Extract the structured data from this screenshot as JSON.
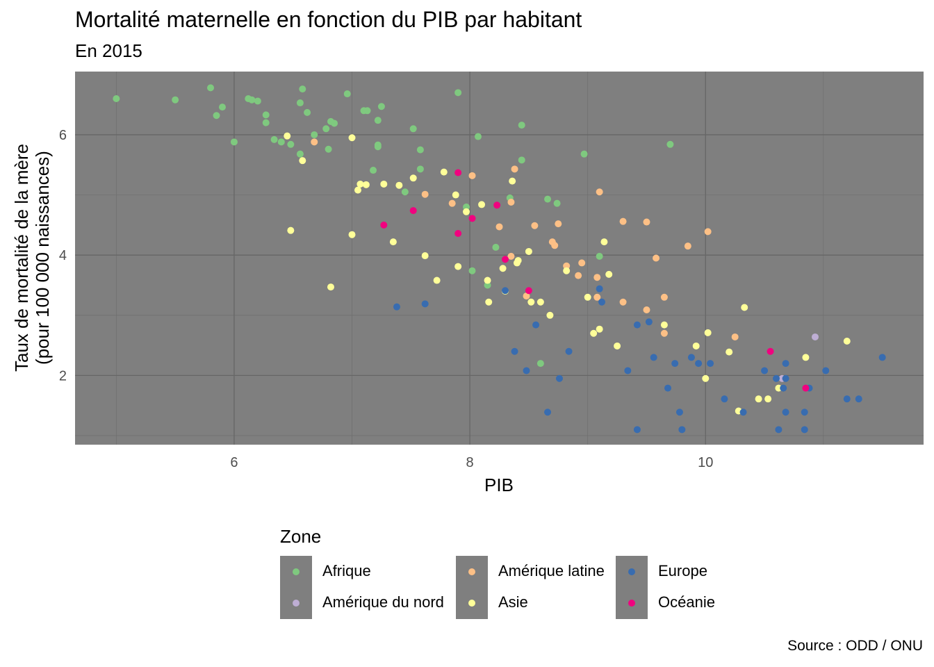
{
  "chart_data": {
    "type": "scatter",
    "title": "Mortalité maternelle en fonction du PIB par habitant",
    "subtitle": "En 2015",
    "xlabel": "PIB",
    "ylabel": "Taux de mortalité de la mère\n(pour 100 000 naissances)",
    "caption": "Source : ODD / ONU",
    "xlim": [
      4.65,
      11.85
    ],
    "ylim": [
      0.85,
      7.05
    ],
    "xticks": [
      6,
      8,
      10
    ],
    "yticks": [
      2,
      4,
      6
    ],
    "grid": true,
    "panel_background": "#7f7f7f",
    "legend_title": "Zone",
    "legend_position": "bottom",
    "series": [
      {
        "name": "Afrique",
        "color": "#7fc97f",
        "points": [
          [
            5.0,
            6.6
          ],
          [
            5.5,
            6.58
          ],
          [
            5.8,
            6.78
          ],
          [
            5.85,
            6.32
          ],
          [
            5.9,
            6.46
          ],
          [
            6.0,
            5.88
          ],
          [
            6.12,
            6.6
          ],
          [
            6.15,
            6.58
          ],
          [
            6.2,
            6.56
          ],
          [
            6.27,
            6.33
          ],
          [
            6.27,
            6.2
          ],
          [
            6.34,
            5.92
          ],
          [
            6.4,
            5.88
          ],
          [
            6.48,
            5.84
          ],
          [
            6.56,
            5.68
          ],
          [
            6.56,
            6.53
          ],
          [
            6.58,
            6.76
          ],
          [
            6.62,
            6.37
          ],
          [
            6.68,
            6.0
          ],
          [
            6.78,
            6.1
          ],
          [
            6.8,
            5.76
          ],
          [
            6.82,
            6.22
          ],
          [
            6.85,
            6.19
          ],
          [
            6.96,
            6.68
          ],
          [
            7.1,
            6.4
          ],
          [
            7.13,
            6.4
          ],
          [
            7.18,
            5.41
          ],
          [
            7.22,
            5.8
          ],
          [
            7.22,
            5.83
          ],
          [
            7.22,
            6.24
          ],
          [
            7.25,
            6.47
          ],
          [
            7.45,
            5.05
          ],
          [
            7.52,
            6.1
          ],
          [
            7.58,
            5.43
          ],
          [
            7.58,
            5.75
          ],
          [
            7.9,
            6.7
          ],
          [
            7.97,
            4.8
          ],
          [
            8.02,
            3.74
          ],
          [
            8.07,
            5.97
          ],
          [
            8.15,
            3.5
          ],
          [
            8.22,
            4.13
          ],
          [
            8.34,
            4.95
          ],
          [
            8.44,
            6.16
          ],
          [
            8.44,
            5.58
          ],
          [
            8.6,
            2.2
          ],
          [
            8.66,
            4.93
          ],
          [
            8.74,
            4.86
          ],
          [
            8.97,
            5.68
          ],
          [
            9.1,
            3.98
          ],
          [
            9.7,
            5.84
          ]
        ]
      },
      {
        "name": "Amérique du nord",
        "color": "#beaed4",
        "points": [
          [
            10.65,
            1.95
          ],
          [
            10.93,
            2.64
          ]
        ]
      },
      {
        "name": "Amérique latine",
        "color": "#fdc086",
        "points": [
          [
            6.68,
            5.88
          ],
          [
            7.62,
            5.01
          ],
          [
            7.85,
            4.86
          ],
          [
            8.02,
            5.32
          ],
          [
            8.25,
            4.47
          ],
          [
            8.35,
            3.98
          ],
          [
            8.35,
            4.88
          ],
          [
            8.38,
            5.43
          ],
          [
            8.48,
            3.32
          ],
          [
            8.55,
            4.49
          ],
          [
            8.7,
            4.22
          ],
          [
            8.72,
            4.16
          ],
          [
            8.75,
            4.52
          ],
          [
            8.82,
            3.82
          ],
          [
            8.92,
            3.66
          ],
          [
            8.95,
            3.87
          ],
          [
            9.08,
            3.63
          ],
          [
            9.08,
            3.3
          ],
          [
            9.1,
            5.05
          ],
          [
            9.3,
            4.56
          ],
          [
            9.3,
            3.22
          ],
          [
            9.5,
            4.55
          ],
          [
            9.5,
            3.09
          ],
          [
            9.58,
            3.95
          ],
          [
            9.65,
            3.3
          ],
          [
            9.65,
            2.7
          ],
          [
            9.85,
            4.15
          ],
          [
            10.02,
            4.39
          ],
          [
            10.25,
            2.64
          ]
        ]
      },
      {
        "name": "Asie",
        "color": "#ffff99",
        "points": [
          [
            6.45,
            5.98
          ],
          [
            6.48,
            4.41
          ],
          [
            6.58,
            5.57
          ],
          [
            6.82,
            3.47
          ],
          [
            7.0,
            5.95
          ],
          [
            7.0,
            4.34
          ],
          [
            7.05,
            5.08
          ],
          [
            7.07,
            5.18
          ],
          [
            7.12,
            5.17
          ],
          [
            7.27,
            5.18
          ],
          [
            7.35,
            4.22
          ],
          [
            7.4,
            5.16
          ],
          [
            7.52,
            5.28
          ],
          [
            7.62,
            3.99
          ],
          [
            7.72,
            3.58
          ],
          [
            7.78,
            5.38
          ],
          [
            7.88,
            5.0
          ],
          [
            7.9,
            3.81
          ],
          [
            7.97,
            4.72
          ],
          [
            8.1,
            4.84
          ],
          [
            8.15,
            3.58
          ],
          [
            8.16,
            3.22
          ],
          [
            8.28,
            3.78
          ],
          [
            8.3,
            3.4
          ],
          [
            8.36,
            5.23
          ],
          [
            8.4,
            3.87
          ],
          [
            8.41,
            3.91
          ],
          [
            8.5,
            4.06
          ],
          [
            8.52,
            3.22
          ],
          [
            8.6,
            3.22
          ],
          [
            8.68,
            3.0
          ],
          [
            8.82,
            3.74
          ],
          [
            9.0,
            3.3
          ],
          [
            9.05,
            2.7
          ],
          [
            9.1,
            2.77
          ],
          [
            9.14,
            4.22
          ],
          [
            9.18,
            3.68
          ],
          [
            9.25,
            2.49
          ],
          [
            9.65,
            2.84
          ],
          [
            9.92,
            2.49
          ],
          [
            10.0,
            1.95
          ],
          [
            10.02,
            2.71
          ],
          [
            10.2,
            2.39
          ],
          [
            10.28,
            1.41
          ],
          [
            10.33,
            3.13
          ],
          [
            10.45,
            1.61
          ],
          [
            10.53,
            1.61
          ],
          [
            10.62,
            1.79
          ],
          [
            10.85,
            2.3
          ],
          [
            11.2,
            2.57
          ]
        ]
      },
      {
        "name": "Europe",
        "color": "#386cb0",
        "points": [
          [
            7.38,
            3.14
          ],
          [
            7.62,
            3.19
          ],
          [
            8.3,
            3.41
          ],
          [
            8.38,
            2.4
          ],
          [
            8.48,
            2.08
          ],
          [
            8.56,
            2.84
          ],
          [
            8.66,
            1.39
          ],
          [
            8.76,
            1.95
          ],
          [
            8.84,
            2.4
          ],
          [
            9.1,
            3.44
          ],
          [
            9.12,
            3.22
          ],
          [
            9.34,
            2.08
          ],
          [
            9.42,
            1.1
          ],
          [
            9.42,
            2.84
          ],
          [
            9.52,
            2.89
          ],
          [
            9.56,
            2.3
          ],
          [
            9.68,
            1.79
          ],
          [
            9.74,
            2.2
          ],
          [
            9.78,
            1.39
          ],
          [
            9.8,
            1.1
          ],
          [
            9.88,
            2.3
          ],
          [
            9.94,
            2.2
          ],
          [
            10.04,
            2.2
          ],
          [
            10.16,
            1.61
          ],
          [
            10.32,
            1.39
          ],
          [
            10.5,
            2.08
          ],
          [
            10.6,
            1.95
          ],
          [
            10.62,
            1.1
          ],
          [
            10.66,
            1.79
          ],
          [
            10.68,
            2.2
          ],
          [
            10.68,
            1.95
          ],
          [
            10.68,
            1.39
          ],
          [
            10.84,
            1.1
          ],
          [
            10.84,
            1.39
          ],
          [
            10.88,
            1.79
          ],
          [
            11.02,
            2.08
          ],
          [
            11.2,
            1.61
          ],
          [
            11.3,
            1.61
          ],
          [
            11.5,
            2.3
          ]
        ]
      },
      {
        "name": "Océanie",
        "color": "#f0027f",
        "points": [
          [
            7.27,
            4.5
          ],
          [
            7.52,
            4.74
          ],
          [
            7.9,
            5.37
          ],
          [
            7.9,
            4.36
          ],
          [
            8.02,
            4.61
          ],
          [
            8.23,
            4.83
          ],
          [
            8.3,
            3.93
          ],
          [
            8.5,
            3.41
          ],
          [
            10.55,
            2.4
          ],
          [
            10.85,
            1.79
          ]
        ]
      }
    ]
  }
}
